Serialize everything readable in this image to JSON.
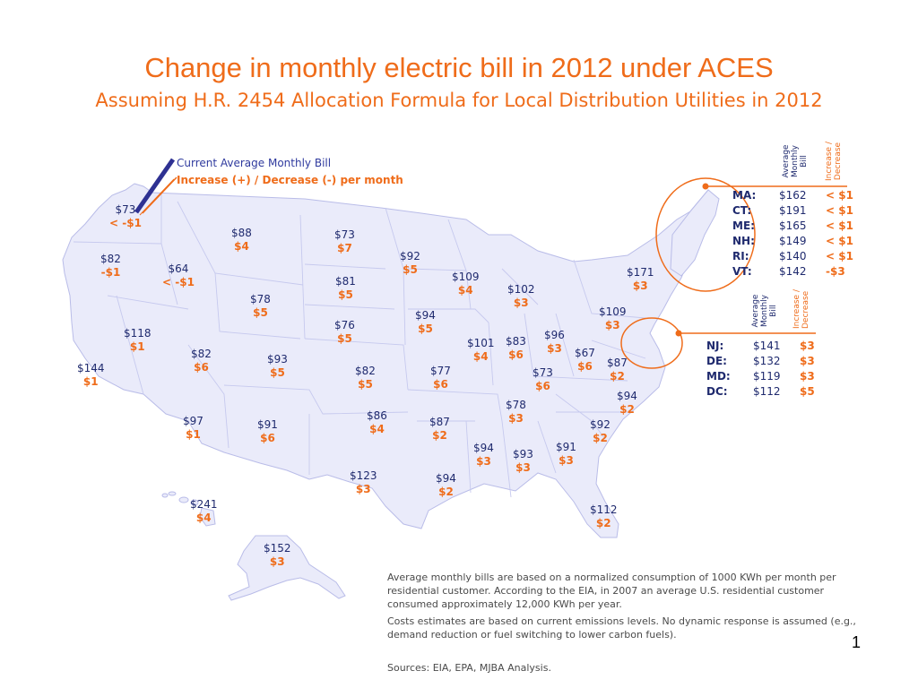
{
  "title": "Change in monthly electric bill in 2012 under ACES",
  "subtitle": "Assuming H.R. 2454 Allocation Formula for Local Distribution Utilities in 2012",
  "legend": {
    "bill_label": "Current Average Monthly Bill",
    "change_label": "Increase (+) / Decrease (-) per month"
  },
  "colors": {
    "accent": "#ef6c1a",
    "bill_text": "#1f2a6e",
    "map_fill": "#eaebfa",
    "map_border": "#b9bce8"
  },
  "states": [
    {
      "bill": "$73",
      "change": "< -$1"
    },
    {
      "bill": "$82",
      "change": "-$1"
    },
    {
      "bill": "$64",
      "change": "< -$1"
    },
    {
      "bill": "$88",
      "change": "$4"
    },
    {
      "bill": "$73",
      "change": "$7"
    },
    {
      "bill": "$92",
      "change": "$5"
    },
    {
      "bill": "$81",
      "change": "$5"
    },
    {
      "bill": "$78",
      "change": "$5"
    },
    {
      "bill": "$109",
      "change": "$4"
    },
    {
      "bill": "$102",
      "change": "$3"
    },
    {
      "bill": "$171",
      "change": "$3"
    },
    {
      "bill": "$109",
      "change": "$3"
    },
    {
      "bill": "$118",
      "change": "$1"
    },
    {
      "bill": "$76",
      "change": "$5"
    },
    {
      "bill": "$94",
      "change": "$5"
    },
    {
      "bill": "$101",
      "change": "$4"
    },
    {
      "bill": "$83",
      "change": "$6"
    },
    {
      "bill": "$96",
      "change": "$3"
    },
    {
      "bill": "$67",
      "change": "$6"
    },
    {
      "bill": "$87",
      "change": "$2"
    },
    {
      "bill": "$144",
      "change": "$1"
    },
    {
      "bill": "$82",
      "change": "$6"
    },
    {
      "bill": "$93",
      "change": "$5"
    },
    {
      "bill": "$82",
      "change": "$5"
    },
    {
      "bill": "$77",
      "change": "$6"
    },
    {
      "bill": "$73",
      "change": "$6"
    },
    {
      "bill": "$94",
      "change": "$2"
    },
    {
      "bill": "$78",
      "change": "$3"
    },
    {
      "bill": "$97",
      "change": "$1"
    },
    {
      "bill": "$91",
      "change": "$6"
    },
    {
      "bill": "$86",
      "change": "$4"
    },
    {
      "bill": "$87",
      "change": "$2"
    },
    {
      "bill": "$92",
      "change": "$2"
    },
    {
      "bill": "$94",
      "change": "$3"
    },
    {
      "bill": "$93",
      "change": "$3"
    },
    {
      "bill": "$91",
      "change": "$3"
    },
    {
      "bill": "$123",
      "change": "$3"
    },
    {
      "bill": "$94",
      "change": "$2"
    },
    {
      "bill": "$112",
      "change": "$2"
    },
    {
      "bill": "$241",
      "change": "$4"
    },
    {
      "bill": "$152",
      "change": "$3"
    }
  ],
  "callout_headers": {
    "bill": "Average Monthly Bill",
    "change": "Increase / Decrease"
  },
  "new_england": [
    {
      "state": "MA:",
      "bill": "$162",
      "change": "< $1"
    },
    {
      "state": "CT:",
      "bill": "$191",
      "change": "< $1"
    },
    {
      "state": "ME:",
      "bill": "$165",
      "change": "< $1"
    },
    {
      "state": "NH:",
      "bill": "$149",
      "change": "< $1"
    },
    {
      "state": "RI:",
      "bill": "$140",
      "change": "< $1"
    },
    {
      "state": "VT:",
      "bill": "$142",
      "change": "-$3"
    }
  ],
  "mid_atlantic": [
    {
      "state": "NJ:",
      "bill": "$141",
      "change": "$3"
    },
    {
      "state": "DE:",
      "bill": "$132",
      "change": "$3"
    },
    {
      "state": "MD:",
      "bill": "$119",
      "change": "$3"
    },
    {
      "state": "DC:",
      "bill": "$112",
      "change": "$5"
    }
  ],
  "notes": [
    "Average monthly bills are based on a normalized consumption of 1000 KWh per month per residential customer.  According to the EIA, in 2007 an average U.S. residential customer consumed approximately 12,000 KWh per year.",
    "Costs estimates are based on current emissions levels.  No dynamic response is assumed (e.g., demand reduction or fuel switching to lower carbon fuels).",
    "Sources: EIA, EPA, MJBA Analysis."
  ],
  "page_number": "1"
}
